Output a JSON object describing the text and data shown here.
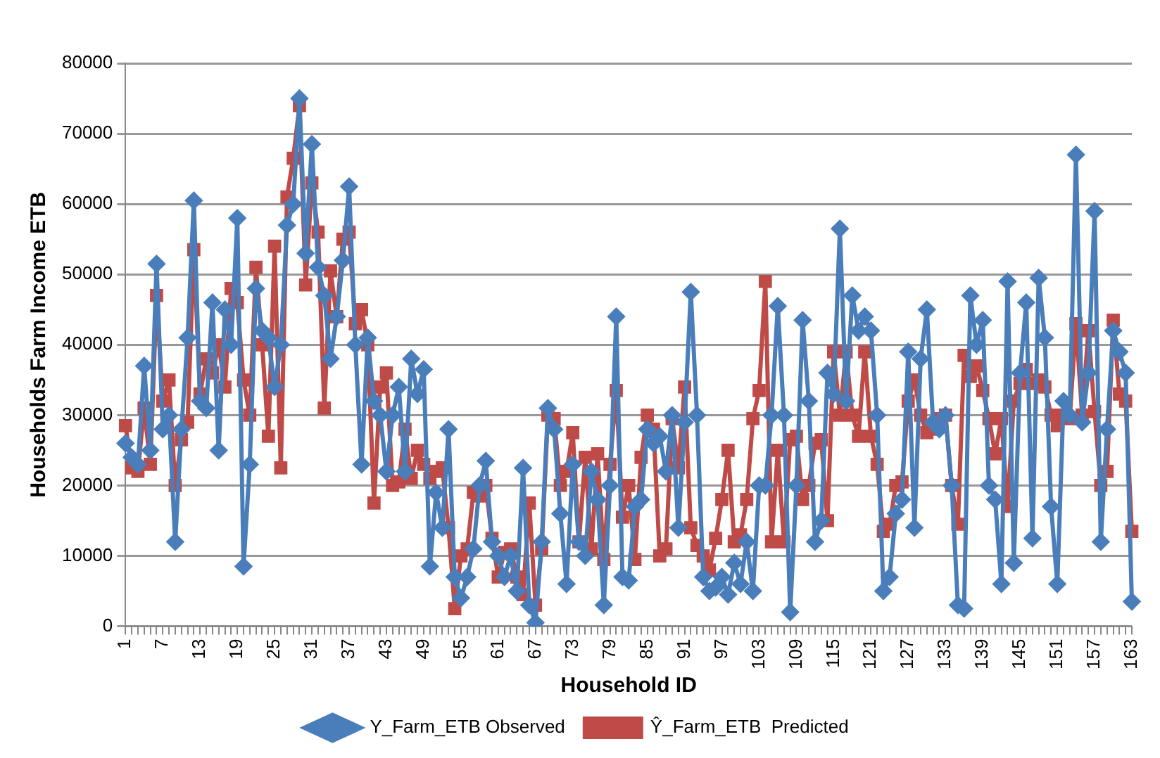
{
  "chart_data": {
    "type": "line",
    "xlabel": "Household ID",
    "ylabel": "Households Farm Income ETB",
    "categories": [
      "1",
      null,
      null,
      null,
      null,
      null,
      "7",
      null,
      null,
      null,
      null,
      null,
      "13",
      null,
      null,
      null,
      null,
      null,
      "19",
      null,
      null,
      null,
      null,
      null,
      "25",
      null,
      null,
      null,
      null,
      null,
      "31",
      null,
      null,
      null,
      null,
      null,
      "37",
      null,
      null,
      null,
      null,
      null,
      "43",
      null,
      null,
      null,
      null,
      null,
      "49",
      null,
      null,
      null,
      null,
      null,
      "55",
      null,
      null,
      null,
      null,
      null,
      "61",
      null,
      null,
      null,
      null,
      null,
      "67",
      null,
      null,
      null,
      null,
      null,
      "73",
      null,
      null,
      null,
      null,
      null,
      "79",
      null,
      null,
      null,
      null,
      null,
      "85",
      null,
      null,
      null,
      null,
      null,
      "91",
      null,
      null,
      null,
      null,
      null,
      "97",
      null,
      null,
      null,
      null,
      null,
      "103",
      null,
      null,
      null,
      null,
      null,
      "109",
      null,
      null,
      null,
      null,
      null,
      "115",
      null,
      null,
      null,
      null,
      null,
      "121",
      null,
      null,
      null,
      null,
      null,
      "127",
      null,
      null,
      null,
      null,
      null,
      "133",
      null,
      null,
      null,
      null,
      null,
      "139",
      null,
      null,
      null,
      null,
      null,
      "145",
      null,
      null,
      null,
      null,
      null,
      "151",
      null,
      null,
      null,
      null,
      null,
      "157",
      null,
      null,
      null,
      null,
      null,
      "163"
    ],
    "series": [
      {
        "name": "Y_Farm_ETB Observed",
        "color": "#4a7ebb",
        "marker": "diamond",
        "values": [
          26000,
          24000,
          23000,
          37000,
          25000,
          51500,
          28000,
          30000,
          12000,
          28000,
          41000,
          60500,
          32000,
          31000,
          46000,
          25000,
          45000,
          40000,
          58000,
          8500,
          23000,
          48000,
          42000,
          41000,
          34000,
          40000,
          57000,
          60000,
          75000,
          53000,
          68500,
          51000,
          47000,
          38000,
          44000,
          52000,
          62500,
          40000,
          23000,
          41000,
          32000,
          30000,
          22000,
          30000,
          34000,
          22000,
          38000,
          33000,
          36500,
          8500,
          19000,
          14000,
          28000,
          7000,
          4000,
          7000,
          11000,
          20000,
          23500,
          12000,
          10000,
          7000,
          10000,
          5000,
          22500,
          3000,
          500,
          12000,
          31000,
          28000,
          16000,
          6000,
          23000,
          12000,
          10000,
          22000,
          18000,
          3000,
          20000,
          44000,
          7000,
          6500,
          17000,
          18000,
          28000,
          26000,
          27000,
          22000,
          30000,
          14000,
          29000,
          47500,
          30000,
          7000,
          5000,
          5500,
          7000,
          4500,
          9000,
          6000,
          12000,
          5000,
          20000,
          20000,
          30000,
          45500,
          30000,
          2000,
          20000,
          43500,
          32000,
          12000,
          15000,
          36000,
          33000,
          56500,
          32000,
          47000,
          42000,
          44000,
          42000,
          30000,
          5000,
          7000,
          16000,
          18000,
          39000,
          14000,
          38000,
          45000,
          29000,
          28000,
          30000,
          20000,
          3000,
          2500,
          47000,
          40000,
          43500,
          20000,
          18000,
          6000,
          49000,
          9000,
          36000,
          46000,
          12500,
          49500,
          41000,
          17000,
          6000,
          32000,
          30000,
          67000,
          29000,
          36000,
          59000,
          12000,
          28000,
          42000,
          39000,
          36000,
          3500
        ]
      },
      {
        "name": "Ŷ_Farm_ETB  Predicted",
        "color": "#be4b48",
        "marker": "square",
        "values": [
          28500,
          22500,
          22000,
          31000,
          23000,
          47000,
          32000,
          35000,
          20000,
          26500,
          29000,
          53500,
          33000,
          38000,
          36000,
          40000,
          34000,
          48000,
          46000,
          35000,
          30000,
          51000,
          40000,
          27000,
          54000,
          22500,
          61000,
          66500,
          74000,
          48500,
          63000,
          56000,
          31000,
          50500,
          44000,
          55000,
          56000,
          43000,
          45000,
          40000,
          17500,
          34000,
          36000,
          20000,
          20500,
          28000,
          21000,
          25000,
          23000,
          21000,
          22000,
          22500,
          14000,
          2500,
          10000,
          11000,
          19000,
          18500,
          20000,
          12500,
          7000,
          10500,
          11000,
          7000,
          4500,
          17500,
          3000,
          11000,
          30000,
          29500,
          20000,
          22000,
          27500,
          12000,
          24000,
          11000,
          24500,
          9500,
          23000,
          33500,
          15500,
          20000,
          9500,
          24000,
          30000,
          28000,
          10000,
          11000,
          29500,
          22500,
          34000,
          14000,
          11500,
          10000,
          8000,
          12500,
          18000,
          25000,
          12000,
          13000,
          18000,
          29500,
          33500,
          49000,
          12000,
          25000,
          12000,
          26500,
          27000,
          18000,
          20000,
          26000,
          26500,
          15000,
          39000,
          30000,
          39000,
          30000,
          27000,
          39000,
          27000,
          23000,
          13500,
          14500,
          20000,
          20500,
          32000,
          35000,
          30000,
          27500,
          28000,
          29500,
          30000,
          20000,
          14500,
          38500,
          35500,
          37000,
          33500,
          29500,
          24500,
          29500,
          17000,
          32000,
          34500,
          36500,
          34500,
          35000,
          34000,
          30000,
          28500,
          30000,
          29500,
          43000,
          30000,
          42000,
          30500,
          20000,
          22000,
          43500,
          33000,
          32000,
          13500
        ]
      }
    ],
    "ylim": [
      0,
      80000
    ],
    "yticks": [
      0,
      10000,
      20000,
      30000,
      40000,
      50000,
      60000,
      70000,
      80000
    ],
    "grid": "y",
    "legend": "bottom"
  }
}
